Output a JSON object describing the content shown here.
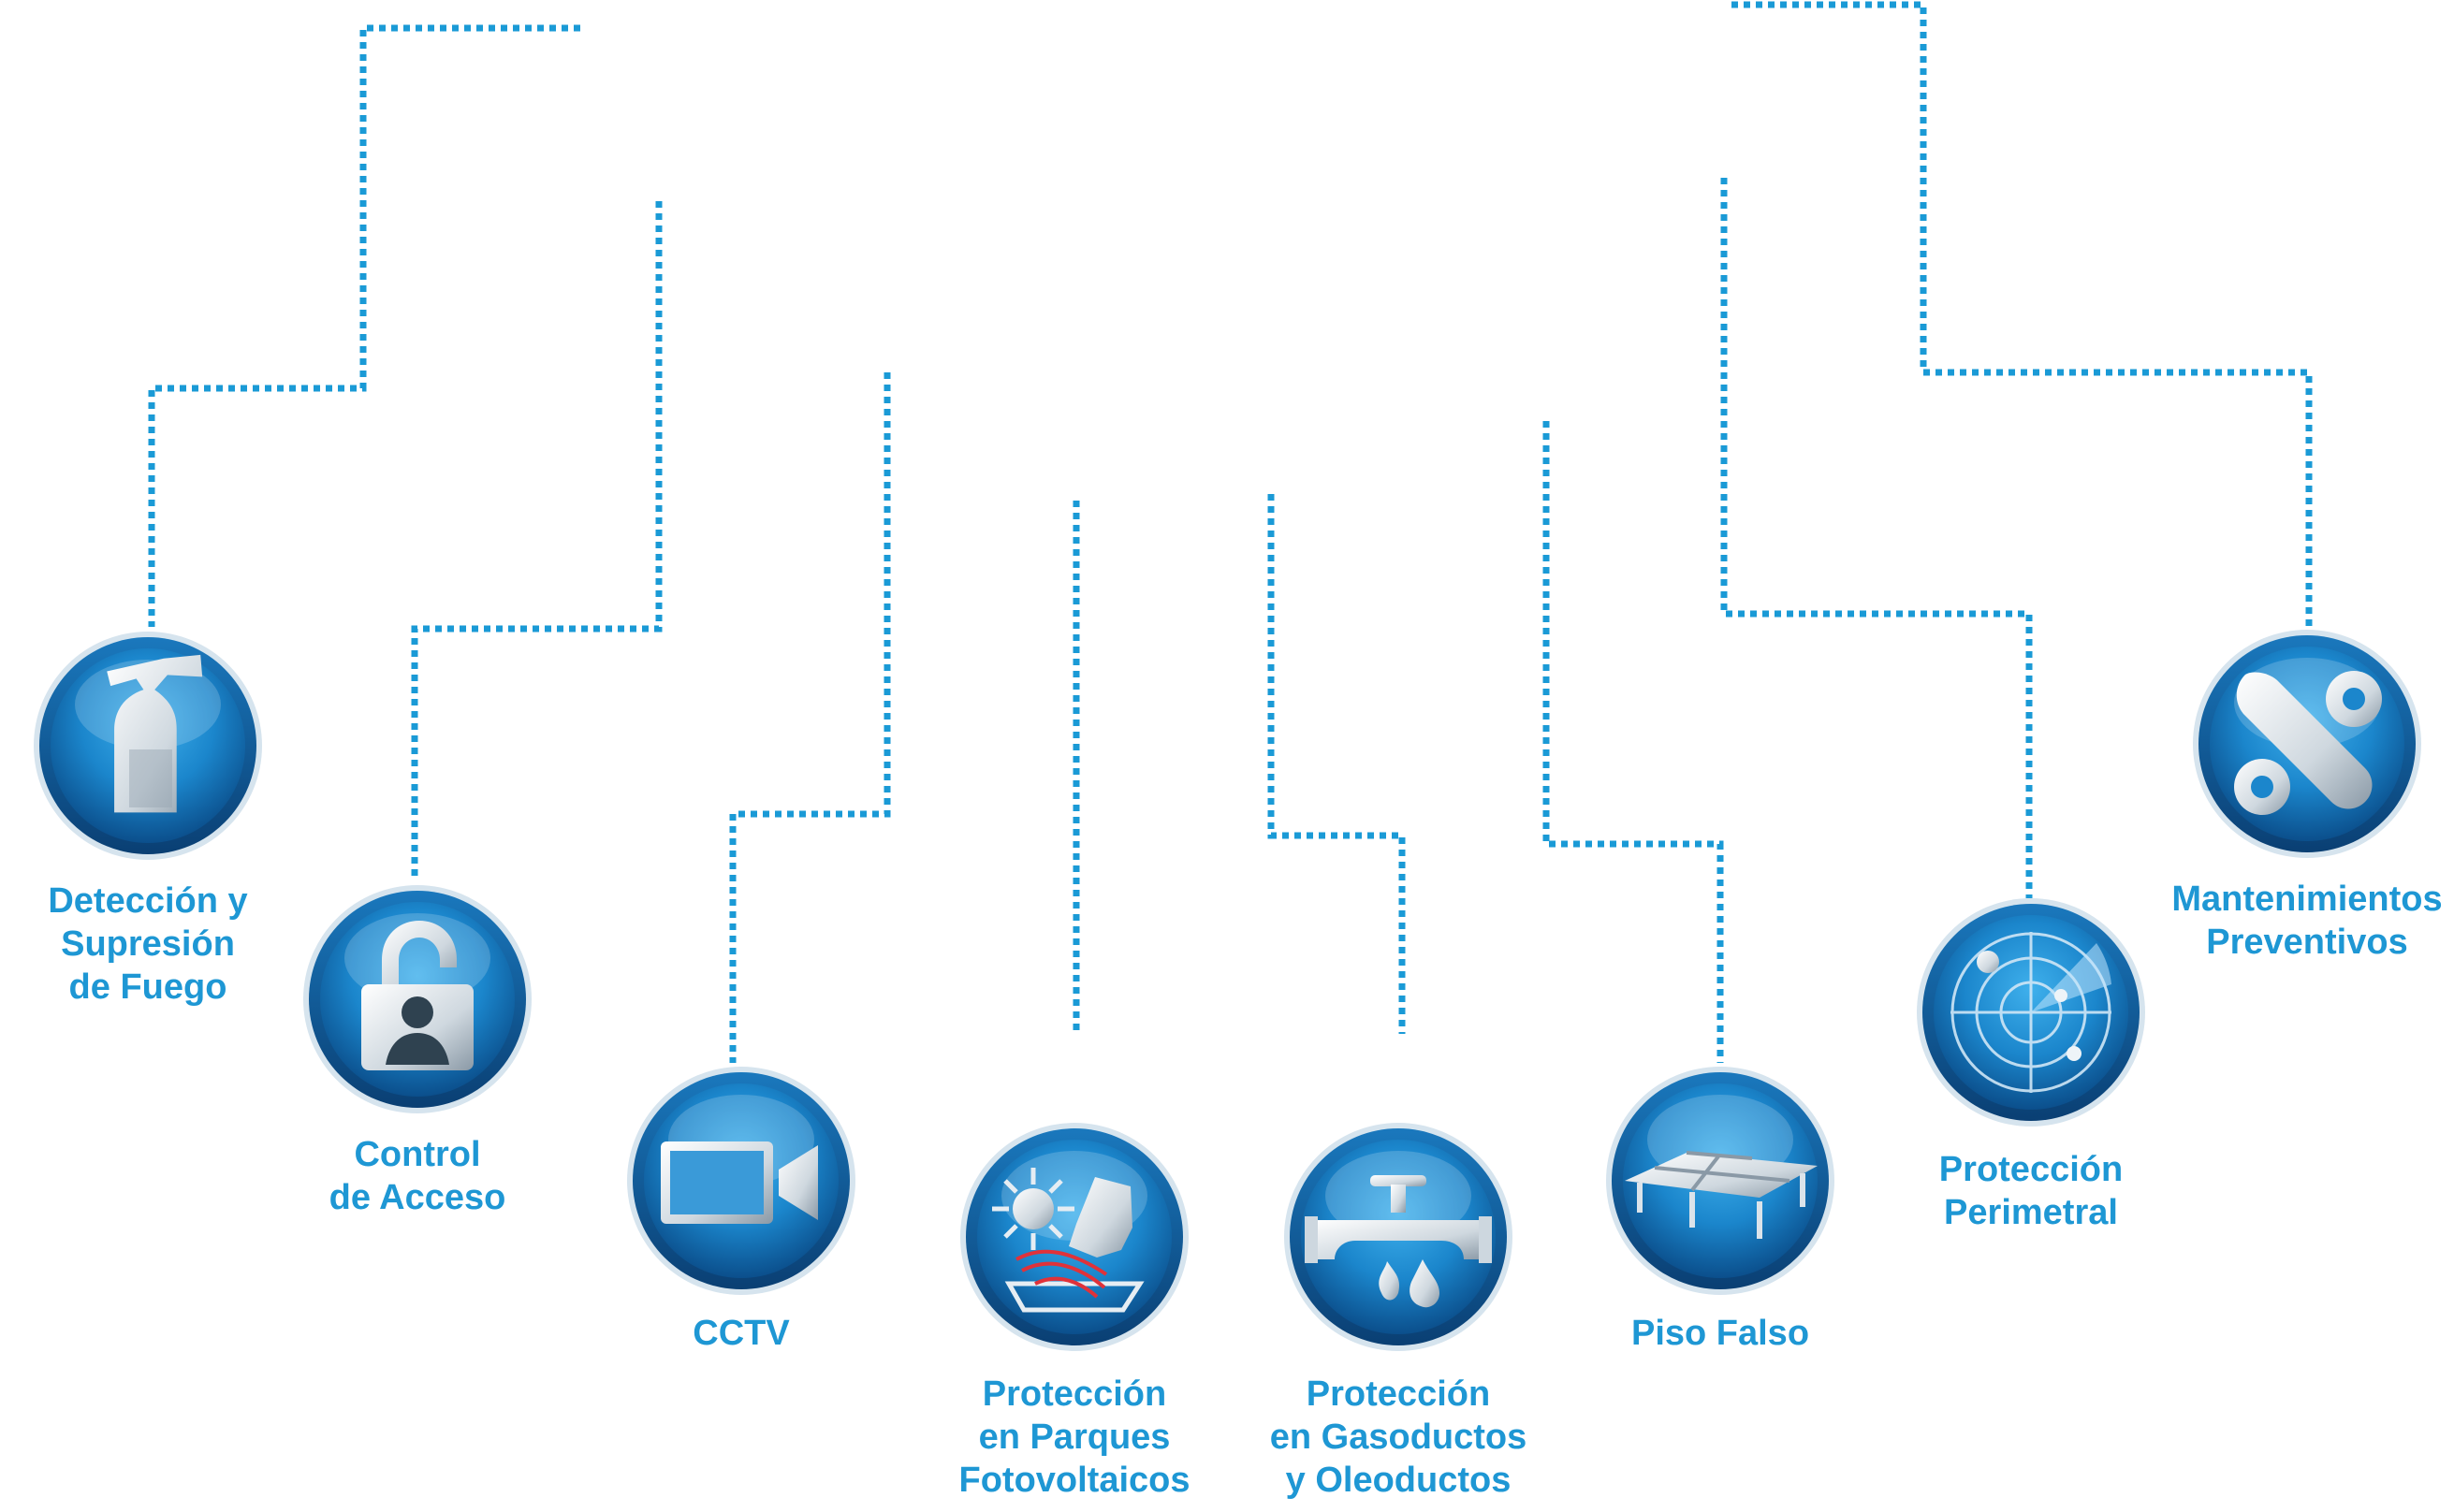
{
  "colors": {
    "connector": "#1a9ad6",
    "label": "#1e97d4",
    "badge_ring": "#0f5f9a",
    "badge_fill": "#1f8fd2",
    "icon": "#e8eef3"
  },
  "services": [
    {
      "id": "fire",
      "icon": "fire-extinguisher-icon",
      "lines": [
        "Detección y",
        "Supresión",
        "de Fuego"
      ]
    },
    {
      "id": "access",
      "icon": "padlock-user-icon",
      "lines": [
        "Control",
        "de Acceso"
      ]
    },
    {
      "id": "cctv",
      "icon": "video-camera-icon",
      "lines": [
        "CCTV"
      ]
    },
    {
      "id": "solar",
      "icon": "solar-panel-icon",
      "lines": [
        "Protección",
        "en Parques",
        "Fotovoltaicos"
      ]
    },
    {
      "id": "pipeline",
      "icon": "pipe-valve-icon",
      "lines": [
        "Protección",
        "en Gasoductos",
        "y Oleoductos"
      ]
    },
    {
      "id": "floor",
      "icon": "raised-floor-icon",
      "lines": [
        "Piso Falso"
      ]
    },
    {
      "id": "perimeter",
      "icon": "radar-icon",
      "lines": [
        "Protección",
        "Perimetral"
      ]
    },
    {
      "id": "maintenance",
      "icon": "wrench-gear-icon",
      "lines": [
        "Mantenimientos",
        "Preventivos"
      ]
    }
  ]
}
